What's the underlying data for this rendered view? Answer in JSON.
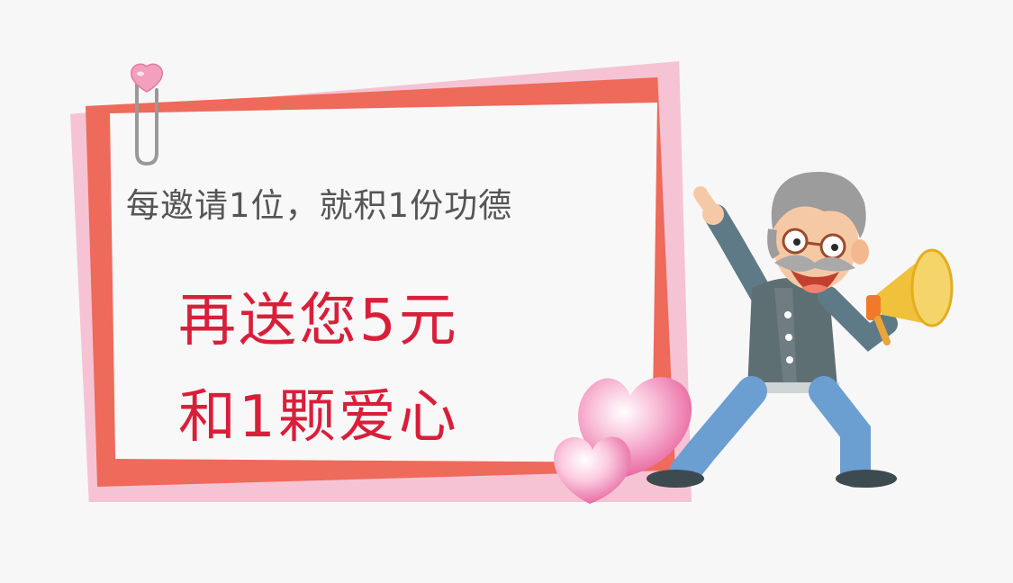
{
  "card": {
    "line1": "每邀请1位，就积1份功德",
    "line2": "再送您5元",
    "line3": "和1颗爱心"
  },
  "colors": {
    "accent_red": "#d81f3a",
    "frame_red": "#ee6a5b",
    "frame_pink": "#f6c3d4",
    "text_gray": "#555555"
  },
  "icons": [
    "paperclip-icon",
    "heart-icon",
    "megaphone-icon",
    "old-man-illustration"
  ]
}
